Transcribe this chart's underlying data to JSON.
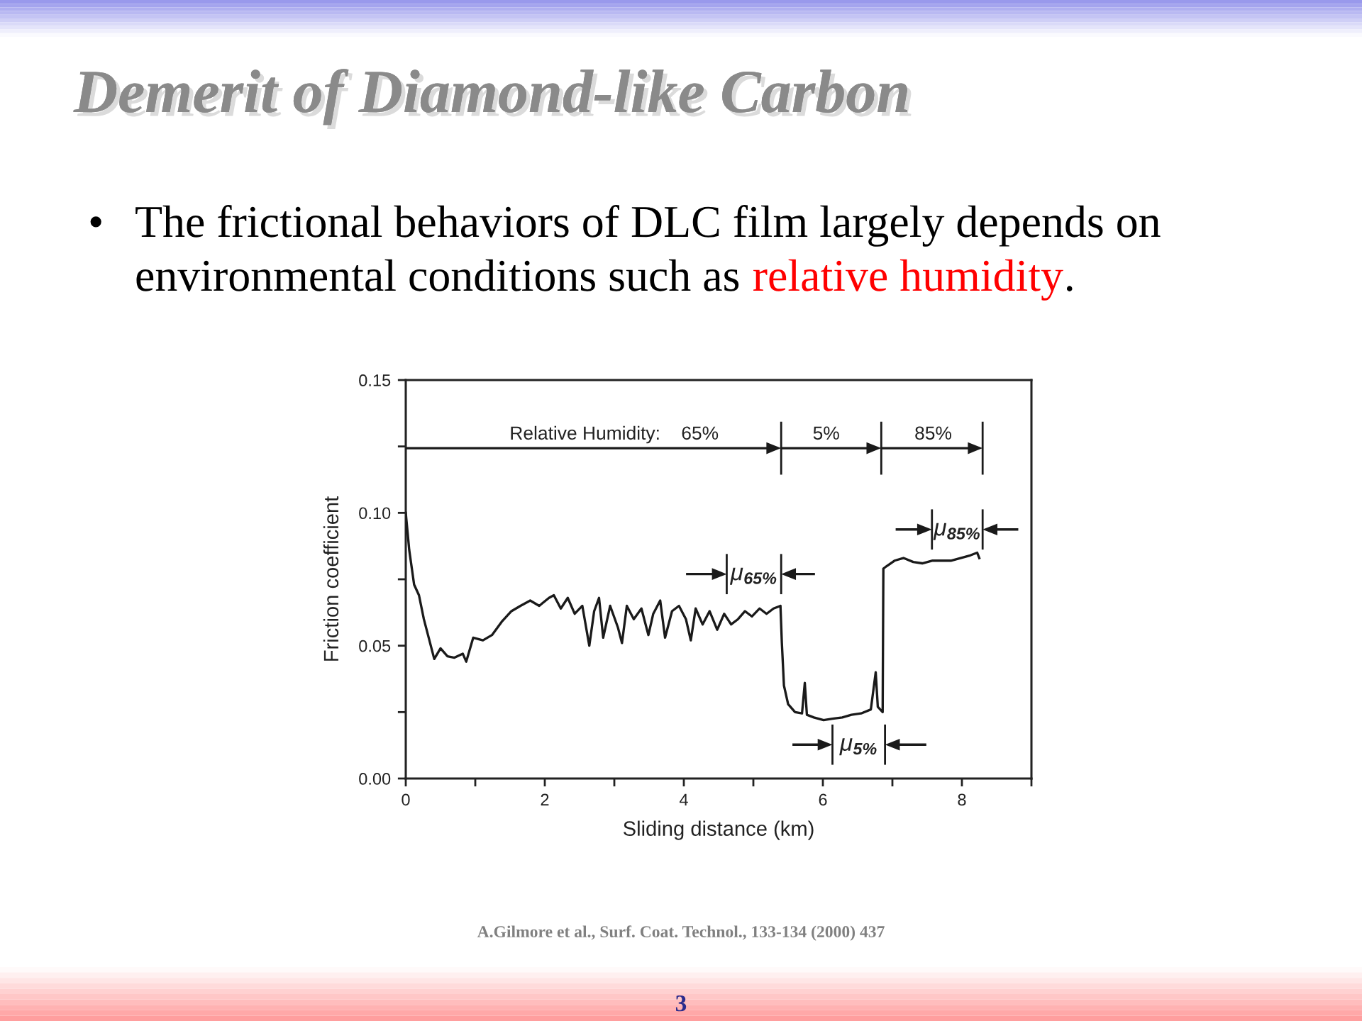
{
  "chart_data": {
    "type": "line",
    "title": "Demerit of Diamond-like Carbon",
    "subtitle": "• The frictional behaviors of DLC film largely depends on environmental conditions such as relative humidity.",
    "xlabel": "Sliding distance (km)",
    "ylabel": "Friction coefficient",
    "x": [
      0,
      0.05,
      0.12,
      0.19,
      0.26,
      0.33,
      0.41,
      0.5,
      0.6,
      0.7,
      0.82,
      0.87,
      0.97,
      1.11,
      1.24,
      1.38,
      1.52,
      1.65,
      1.79,
      1.92,
      2.06,
      2.13,
      2.23,
      2.33,
      2.43,
      2.54,
      2.64,
      2.71,
      2.78,
      2.84,
      2.94,
      3.05,
      3.11,
      3.18,
      3.28,
      3.39,
      3.49,
      3.56,
      3.66,
      3.73,
      3.83,
      3.93,
      4.03,
      4.1,
      4.17,
      4.27,
      4.37,
      4.48,
      4.58,
      4.68,
      4.78,
      4.88,
      4.98,
      5.09,
      5.19,
      5.29,
      5.39,
      5.41,
      5.44,
      5.5,
      5.6,
      5.7,
      5.74,
      5.77,
      5.87,
      6.01,
      6.14,
      6.28,
      6.41,
      6.55,
      6.69,
      6.76,
      6.79,
      6.86,
      6.87,
      6.92,
      7.03,
      7.16,
      7.3,
      7.43,
      7.57,
      7.71,
      7.84,
      7.98,
      8.12,
      8.22,
      8.25
    ],
    "series": [
      {
        "color": "#1a1a1a",
        "values": [
          0.1,
          0.086,
          0.073,
          0.069,
          0.06,
          0.053,
          0.045,
          0.049,
          0.046,
          0.0455,
          0.047,
          0.044,
          0.053,
          0.052,
          0.054,
          0.059,
          0.063,
          0.065,
          0.067,
          0.065,
          0.068,
          0.069,
          0.064,
          0.068,
          0.062,
          0.065,
          0.05,
          0.063,
          0.068,
          0.053,
          0.065,
          0.057,
          0.051,
          0.065,
          0.06,
          0.064,
          0.054,
          0.062,
          0.067,
          0.053,
          0.063,
          0.065,
          0.06,
          0.052,
          0.064,
          0.058,
          0.063,
          0.056,
          0.062,
          0.058,
          0.06,
          0.063,
          0.061,
          0.064,
          0.062,
          0.064,
          0.065,
          0.051,
          0.035,
          0.028,
          0.025,
          0.0245,
          0.036,
          0.024,
          0.023,
          0.022,
          0.0225,
          0.023,
          0.024,
          0.0245,
          0.026,
          0.04,
          0.027,
          0.025,
          0.079,
          0.08,
          0.082,
          0.083,
          0.0815,
          0.081,
          0.082,
          0.082,
          0.082,
          0.083,
          0.084,
          0.085,
          0.083
        ]
      }
    ],
    "xlim": [
      0,
      9
    ],
    "ylim": [
      0,
      0.15
    ],
    "xticks": [
      0,
      {
        "value": 1,
        "label": null
      },
      2,
      {
        "value": 3,
        "label": null
      },
      4,
      {
        "value": 5,
        "label": null
      },
      6,
      {
        "value": 7,
        "label": null
      },
      8,
      {
        "value": 9,
        "label": null
      }
    ],
    "yticks": [
      {
        "value": 0,
        "label": "0.00"
      },
      {
        "value": 0.025,
        "label": null
      },
      0.05,
      {
        "value": 0.075,
        "label": null
      },
      {
        "value": 0.1,
        "label": "0.10"
      },
      {
        "value": 0.125,
        "label": null
      },
      0.15
    ],
    "annotations": [
      "Relative Humidity:    65%",
      "5%",
      "85%",
      "μ$_{65%}$",
      "μ$_{5%}$",
      "μ$_{85%}$",
      "A.Gilmore et al., Surf. Coat. Technol., 133-134 (2000) 437",
      "3"
    ]
  }
}
